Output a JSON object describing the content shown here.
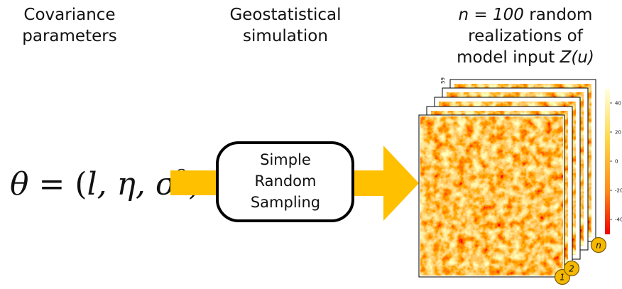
{
  "headings": {
    "covariance": {
      "line1": "Covariance",
      "line2": "parameters"
    },
    "simulation": {
      "line1": "Geostatistical",
      "line2": "simulation"
    },
    "realizations": {
      "line1_italic": "n = 100",
      "line1_rest": " random",
      "line2": "realizations of",
      "line3_text": "model input ",
      "line3_italic": "Z(u)"
    }
  },
  "formula": {
    "lhs": "θ",
    "eq": " = ",
    "open": "(",
    "args": "l, η, σ",
    "power": "2",
    "close": ")"
  },
  "process_box": {
    "line1": "Simple",
    "line2": "Random",
    "line3": "Sampling"
  },
  "map_axis_label": "59",
  "colorbar_ticks": [
    "40",
    "20",
    "0",
    "-20",
    "-40"
  ],
  "badges": [
    "1",
    "2",
    "n"
  ]
}
